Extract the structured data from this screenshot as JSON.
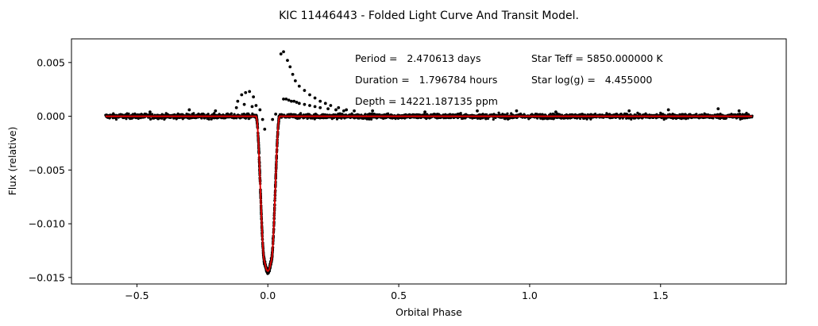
{
  "chart_data": {
    "type": "scatter",
    "title": "KIC 11446443 - Folded Light Curve And Transit Model.",
    "xlabel": "Orbital Phase",
    "ylabel": "Flux (relative)",
    "xlim": [
      -0.75,
      1.98
    ],
    "ylim": [
      -0.0156,
      0.0072
    ],
    "xticks": [
      -0.5,
      0.0,
      0.5,
      1.0,
      1.5
    ],
    "xtick_labels": [
      "−0.5",
      "0.0",
      "0.5",
      "1.0",
      "1.5"
    ],
    "yticks": [
      0.005,
      0.0,
      -0.005,
      -0.01,
      -0.015
    ],
    "ytick_labels": [
      "0.005",
      "0.000",
      "−0.005",
      "−0.010",
      "−0.015"
    ],
    "phase_range": [
      -0.62,
      1.85
    ],
    "baseline_flux": 0.0,
    "baseline_scatter": 0.00022,
    "transit_center": 0.0,
    "transit_min_flux": -0.0144,
    "transit_total_halfwidth": 0.045,
    "transit_core_halfwidth": 0.012,
    "outliers_right": {
      "x": [
        0.05,
        0.06,
        0.075,
        0.085,
        0.095,
        0.105,
        0.12,
        0.14,
        0.16,
        0.18,
        0.2,
        0.22,
        0.24,
        0.27,
        0.3,
        0.33
      ],
      "y": [
        0.0058,
        0.006,
        0.0052,
        0.0046,
        0.0039,
        0.0033,
        0.0028,
        0.0024,
        0.002,
        0.0017,
        0.0014,
        0.0012,
        0.001,
        0.0008,
        0.0006,
        0.0005
      ]
    },
    "outliers_right_lower": {
      "x": [
        0.06,
        0.07,
        0.08,
        0.09,
        0.1,
        0.11,
        0.12,
        0.14,
        0.16,
        0.18,
        0.2,
        0.23,
        0.26,
        0.29
      ],
      "y": [
        0.0016,
        0.0016,
        0.0015,
        0.0014,
        0.0014,
        0.0013,
        0.0012,
        0.0011,
        0.001,
        0.0009,
        0.0008,
        0.0007,
        0.0006,
        0.0005
      ]
    },
    "outliers_left": {
      "x": [
        -0.115,
        -0.1,
        -0.085,
        -0.07,
        -0.055,
        -0.045,
        -0.03,
        -0.12,
        -0.09,
        -0.06
      ],
      "y": [
        0.0014,
        0.002,
        0.0022,
        0.0023,
        0.0018,
        0.001,
        0.0006,
        0.0008,
        0.0011,
        0.0009
      ]
    },
    "outliers_scattered": {
      "x": [
        -0.3,
        -0.2,
        0.4,
        0.6,
        0.8,
        1.1,
        1.38,
        1.53,
        1.72,
        1.8,
        -0.45,
        0.95
      ],
      "y": [
        0.0006,
        0.0005,
        0.0005,
        0.0004,
        0.0005,
        0.0004,
        0.0005,
        0.0006,
        0.0007,
        0.0005,
        0.0004,
        0.0005
      ]
    },
    "inner_dips": {
      "x": [
        -0.02,
        0.018,
        0.03,
        -0.012
      ],
      "y": [
        -0.0003,
        -0.0003,
        0.0002,
        -0.0012
      ]
    },
    "model_color": "#dd0000",
    "data_color": "#000000"
  },
  "annotations": {
    "period": "Period =   2.470613 days",
    "duration": "Duration =   1.796784 hours",
    "depth": "Depth = 14221.187135 ppm",
    "teff": "Star Teff = 5850.000000 K",
    "logg": "Star log(g) =   4.455000"
  }
}
